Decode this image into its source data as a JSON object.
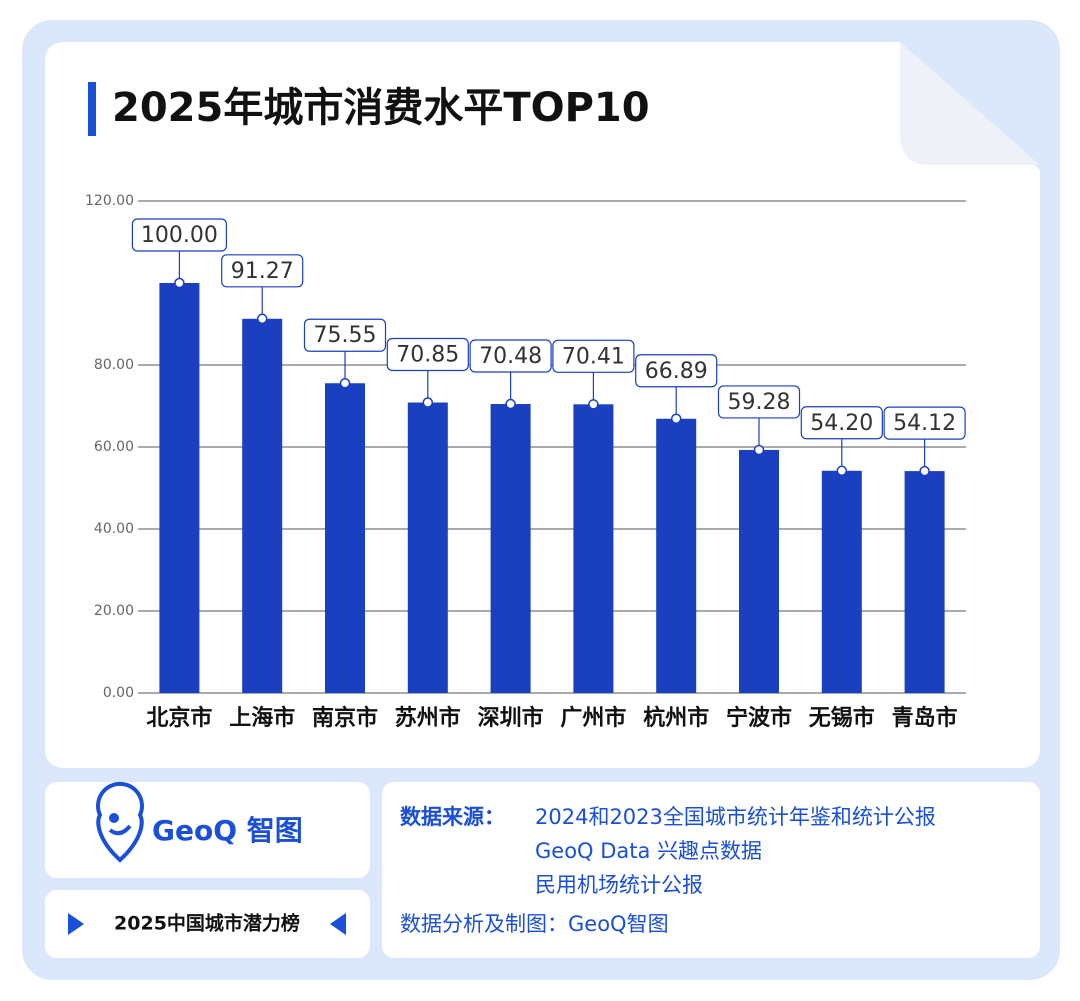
{
  "chart_data": {
    "type": "bar",
    "title": "2025年城市消费水平TOP10",
    "categories": [
      "北京市",
      "上海市",
      "南京市",
      "苏州市",
      "深圳市",
      "广州市",
      "杭州市",
      "宁波市",
      "无锡市",
      "青岛市"
    ],
    "values": [
      100.0,
      91.27,
      75.55,
      70.85,
      70.48,
      70.41,
      66.89,
      59.28,
      54.2,
      54.12
    ],
    "value_labels": [
      "100.00",
      "91.27",
      "75.55",
      "70.85",
      "70.48",
      "70.41",
      "66.89",
      "59.28",
      "54.20",
      "54.12"
    ],
    "color": "#1a3fbf",
    "ylim": [
      0,
      120
    ],
    "yticks": [
      {
        "value": 0,
        "label": "0.00"
      },
      {
        "value": 20,
        "label": "20.00"
      },
      {
        "value": 40,
        "label": "40.00"
      },
      {
        "value": 60,
        "label": "60.00"
      },
      {
        "value": 80,
        "label": "80.00"
      },
      {
        "value": 120,
        "label": "120.00"
      }
    ],
    "grid": true
  },
  "footer": {
    "logo": "GeoQ 智图",
    "tag": "2025中国城市潜力榜",
    "source_label": "数据来源：",
    "source_lines": [
      "2024和2023全国城市统计年鉴和统计公报",
      "GeoQ Data 兴趣点数据",
      "民用机场统计公报"
    ],
    "analysis": "数据分析及制图：GeoQ智图"
  }
}
